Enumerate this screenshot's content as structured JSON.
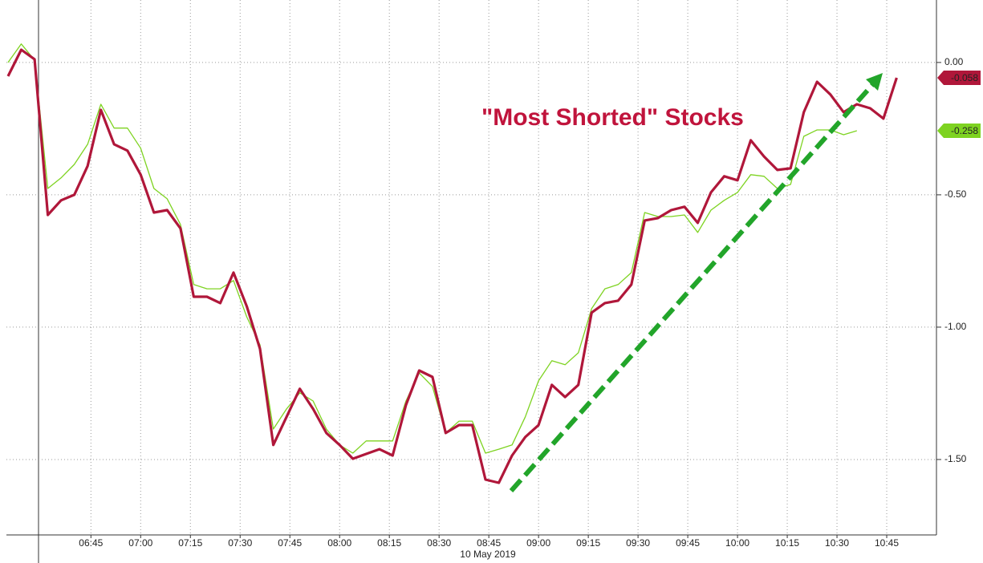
{
  "chart_data": {
    "type": "line",
    "title": "\"Most Shorted\" Stocks",
    "x_label": "10 May 2019",
    "x": [
      380,
      384,
      388,
      392,
      396,
      400,
      404,
      408,
      412,
      416,
      420,
      424,
      428,
      432,
      436,
      440,
      444,
      448,
      452,
      456,
      460,
      464,
      468,
      472,
      476,
      480,
      484,
      488,
      492,
      496,
      500,
      504,
      508,
      512,
      516,
      520,
      524,
      528,
      532,
      536,
      540,
      544,
      548,
      552,
      556,
      560,
      564,
      568,
      572,
      576,
      580,
      584,
      588,
      592,
      596,
      600,
      604,
      608,
      612,
      616,
      620,
      624,
      628,
      632,
      636,
      640,
      644,
      648
    ],
    "xlim": [
      380,
      660
    ],
    "xticks": [
      {
        "value": 405,
        "label": "06:45"
      },
      {
        "value": 420,
        "label": "07:00"
      },
      {
        "value": 435,
        "label": "07:15"
      },
      {
        "value": 450,
        "label": "07:30"
      },
      {
        "value": 465,
        "label": "07:45"
      },
      {
        "value": 480,
        "label": "08:00"
      },
      {
        "value": 495,
        "label": "08:15"
      },
      {
        "value": 510,
        "label": "08:30"
      },
      {
        "value": 525,
        "label": "08:45"
      },
      {
        "value": 540,
        "label": "09:00"
      },
      {
        "value": 555,
        "label": "09:15"
      },
      {
        "value": 570,
        "label": "09:30"
      },
      {
        "value": 585,
        "label": "09:45"
      },
      {
        "value": 600,
        "label": "10:00"
      },
      {
        "value": 615,
        "label": "10:15"
      },
      {
        "value": 630,
        "label": "10:30"
      },
      {
        "value": 645,
        "label": "10:45"
      }
    ],
    "ylim": [
      -1.785,
      0.236
    ],
    "yticks": [
      {
        "value": 0,
        "label": "0.00"
      },
      {
        "value": -0.5,
        "label": "-0.50"
      },
      {
        "value": -1,
        "label": "-1.00"
      },
      {
        "value": -1.5,
        "label": "-1.50"
      }
    ],
    "grid": true,
    "series": [
      {
        "color": "#7ed321",
        "values": [
          0,
          0.07,
          0.009,
          -0.476,
          -0.436,
          -0.385,
          -0.309,
          -0.158,
          -0.248,
          -0.248,
          -0.324,
          -0.476,
          -0.515,
          -0.612,
          -0.839,
          -0.855,
          -0.855,
          -0.824,
          -0.961,
          -1.067,
          -1.385,
          -1.309,
          -1.248,
          -1.279,
          -1.385,
          -1.445,
          -1.476,
          -1.43,
          -1.43,
          -1.43,
          -1.279,
          -1.173,
          -1.224,
          -1.4,
          -1.355,
          -1.355,
          -1.476,
          -1.461,
          -1.445,
          -1.339,
          -1.203,
          -1.127,
          -1.142,
          -1.097,
          -0.93,
          -0.855,
          -0.839,
          -0.794,
          -0.567,
          -0.582,
          -0.582,
          -0.576,
          -0.642,
          -0.558,
          -0.521,
          -0.491,
          -0.424,
          -0.43,
          -0.476,
          -0.461,
          -0.279,
          -0.255,
          -0.255,
          -0.273,
          -0.258,
          null,
          null,
          null
        ]
      },
      {
        "color": "#b0173a",
        "values": [
          -0.052,
          0.048,
          0.012,
          -0.576,
          -0.521,
          -0.5,
          -0.391,
          -0.179,
          -0.309,
          -0.333,
          -0.424,
          -0.567,
          -0.558,
          -0.627,
          -0.885,
          -0.885,
          -0.909,
          -0.794,
          -0.921,
          -1.082,
          -1.445,
          -1.339,
          -1.233,
          -1.309,
          -1.4,
          -1.445,
          -1.497,
          -1.479,
          -1.461,
          -1.485,
          -1.294,
          -1.164,
          -1.188,
          -1.4,
          -1.37,
          -1.37,
          -1.576,
          -1.588,
          -1.485,
          -1.415,
          -1.37,
          -1.218,
          -1.264,
          -1.218,
          -0.945,
          -0.909,
          -0.9,
          -0.839,
          -0.597,
          -0.588,
          -0.558,
          -0.545,
          -0.606,
          -0.491,
          -0.43,
          -0.445,
          -0.294,
          -0.355,
          -0.406,
          -0.4,
          -0.188,
          -0.073,
          -0.121,
          -0.188,
          -0.158,
          -0.173,
          -0.212,
          -0.058
        ]
      }
    ]
  }
}
